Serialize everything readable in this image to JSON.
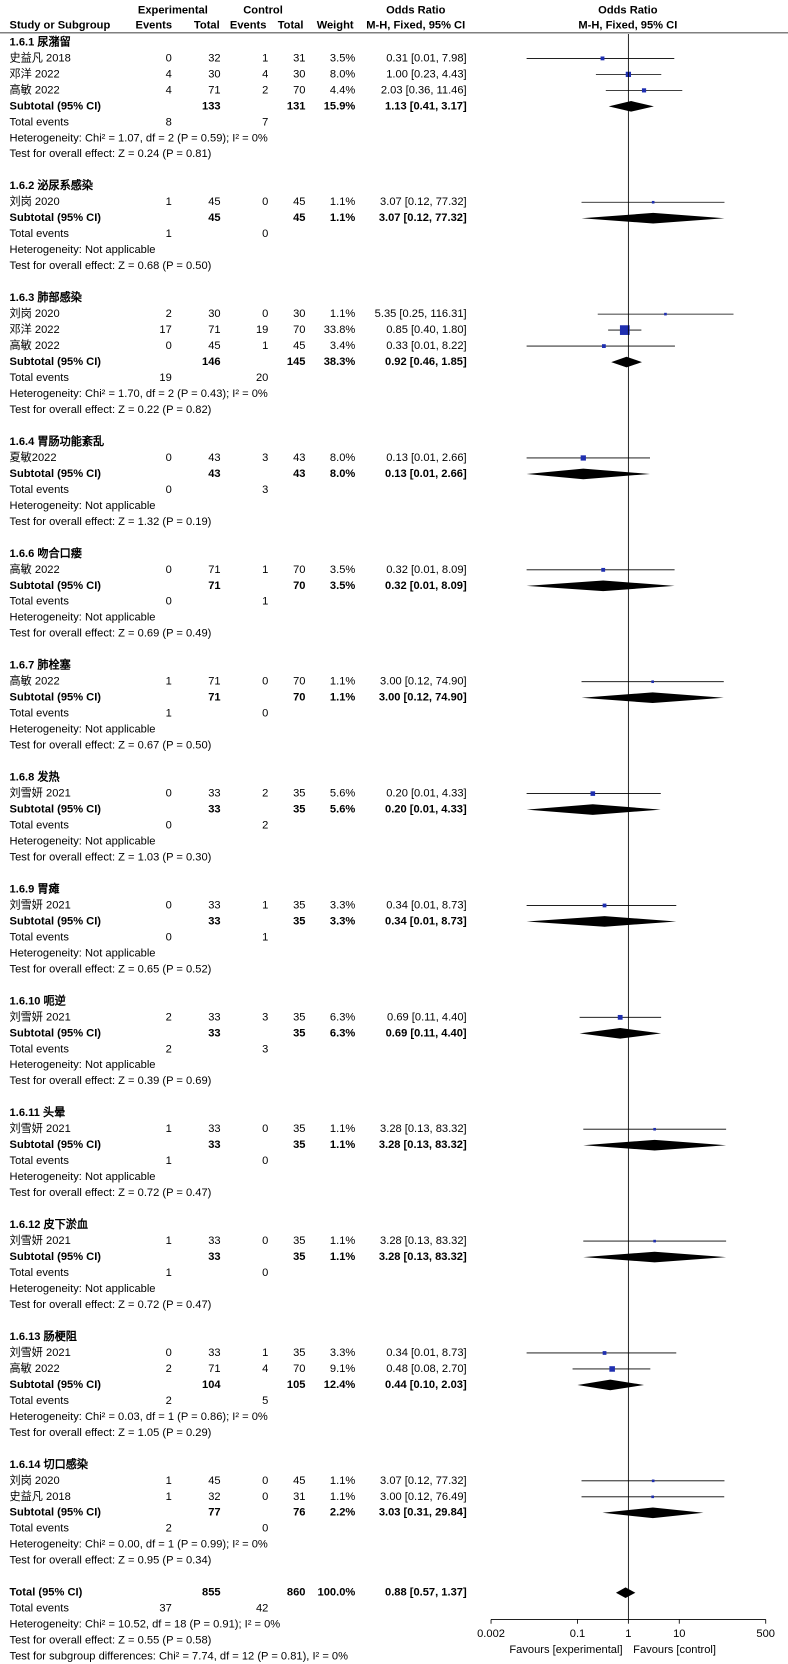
{
  "chart_data": {
    "type": "forest",
    "header": {
      "experimental": "Experimental",
      "control": "Control",
      "columns": [
        "Study or Subgroup",
        "Events",
        "Total",
        "Events",
        "Total",
        "Weight"
      ],
      "or_title": "Odds Ratio",
      "or_method": "M-H, Fixed, 95% CI"
    },
    "labels": {
      "subtotal": "Subtotal (95% CI)",
      "total_events": "Total events"
    },
    "xlim": [
      0.002,
      500
    ],
    "xticks": [
      0.002,
      0.1,
      1,
      10,
      500
    ],
    "log": true,
    "xlabel_left": "Favours [experimental]",
    "xlabel_right": "Favours [control]",
    "marker_color": "#1f2fb0",
    "diamond_color": "#000000",
    "groups": [
      {
        "title": "1.6.1 尿潴留",
        "studies": [
          {
            "name": "史益凡 2018",
            "e_events": 0,
            "e_total": 32,
            "c_events": 1,
            "c_total": 31,
            "weight": 3.5,
            "weight_label": "3.5%",
            "or": 0.31,
            "lo": 0.01,
            "hi": 7.98,
            "ci_label": "0.31 [0.01, 7.98]"
          },
          {
            "name": "邓洋 2022",
            "e_events": 4,
            "e_total": 30,
            "c_events": 4,
            "c_total": 30,
            "weight": 8.0,
            "weight_label": "8.0%",
            "or": 1.0,
            "lo": 0.23,
            "hi": 4.43,
            "ci_label": "1.00 [0.23, 4.43]"
          },
          {
            "name": "高敏 2022",
            "e_events": 4,
            "e_total": 71,
            "c_events": 2,
            "c_total": 70,
            "weight": 4.4,
            "weight_label": "4.4%",
            "or": 2.03,
            "lo": 0.36,
            "hi": 11.46,
            "ci_label": "2.03 [0.36, 11.46]"
          }
        ],
        "subtotal": {
          "e_total": 133,
          "c_total": 131,
          "weight": 15.9,
          "weight_label": "15.9%",
          "or": 1.13,
          "lo": 0.41,
          "hi": 3.17,
          "ci_label": "1.13 [0.41, 3.17]"
        },
        "events": [
          8,
          7
        ],
        "heterogeneity": "Heterogeneity: Chi² = 1.07, df = 2 (P = 0.59); I² = 0%",
        "overall": "Test for overall effect: Z = 0.24 (P = 0.81)"
      },
      {
        "title": "1.6.2 泌尿系感染",
        "studies": [
          {
            "name": "刘岗 2020",
            "e_events": 1,
            "e_total": 45,
            "c_events": 0,
            "c_total": 45,
            "weight": 1.1,
            "weight_label": "1.1%",
            "or": 3.07,
            "lo": 0.12,
            "hi": 77.32,
            "ci_label": "3.07 [0.12, 77.32]"
          }
        ],
        "subtotal": {
          "e_total": 45,
          "c_total": 45,
          "weight": 1.1,
          "weight_label": "1.1%",
          "or": 3.07,
          "lo": 0.12,
          "hi": 77.32,
          "ci_label": "3.07 [0.12, 77.32]"
        },
        "events": [
          1,
          0
        ],
        "heterogeneity": "Heterogeneity: Not applicable",
        "overall": "Test for overall effect: Z = 0.68 (P = 0.50)"
      },
      {
        "title": "1.6.3 肺部感染",
        "studies": [
          {
            "name": "刘岗 2020",
            "e_events": 2,
            "e_total": 30,
            "c_events": 0,
            "c_total": 30,
            "weight": 1.1,
            "weight_label": "1.1%",
            "or": 5.35,
            "lo": 0.25,
            "hi": 116.31,
            "ci_label": "5.35 [0.25, 116.31]"
          },
          {
            "name": "邓洋 2022",
            "e_events": 17,
            "e_total": 71,
            "c_events": 19,
            "c_total": 70,
            "weight": 33.8,
            "weight_label": "33.8%",
            "or": 0.85,
            "lo": 0.4,
            "hi": 1.8,
            "ci_label": "0.85 [0.40, 1.80]"
          },
          {
            "name": "高敏 2022",
            "e_events": 0,
            "e_total": 45,
            "c_events": 1,
            "c_total": 45,
            "weight": 3.4,
            "weight_label": "3.4%",
            "or": 0.33,
            "lo": 0.01,
            "hi": 8.22,
            "ci_label": "0.33 [0.01, 8.22]"
          }
        ],
        "subtotal": {
          "e_total": 146,
          "c_total": 145,
          "weight": 38.3,
          "weight_label": "38.3%",
          "or": 0.92,
          "lo": 0.46,
          "hi": 1.85,
          "ci_label": "0.92 [0.46, 1.85]"
        },
        "events": [
          19,
          20
        ],
        "heterogeneity": "Heterogeneity: Chi² = 1.70, df = 2 (P = 0.43); I² = 0%",
        "overall": "Test for overall effect: Z = 0.22 (P = 0.82)"
      },
      {
        "title": "1.6.4 胃肠功能紊乱",
        "studies": [
          {
            "name": "夏敏2022",
            "e_events": 0,
            "e_total": 43,
            "c_events": 3,
            "c_total": 43,
            "weight": 8.0,
            "weight_label": "8.0%",
            "or": 0.13,
            "lo": 0.01,
            "hi": 2.66,
            "ci_label": "0.13 [0.01, 2.66]"
          }
        ],
        "subtotal": {
          "e_total": 43,
          "c_total": 43,
          "weight": 8.0,
          "weight_label": "8.0%",
          "or": 0.13,
          "lo": 0.01,
          "hi": 2.66,
          "ci_label": "0.13 [0.01, 2.66]"
        },
        "events": [
          0,
          3
        ],
        "heterogeneity": "Heterogeneity: Not applicable",
        "overall": "Test for overall effect: Z = 1.32 (P = 0.19)"
      },
      {
        "title": "1.6.6 吻合口瘘",
        "studies": [
          {
            "name": "高敏 2022",
            "e_events": 0,
            "e_total": 71,
            "c_events": 1,
            "c_total": 70,
            "weight": 3.5,
            "weight_label": "3.5%",
            "or": 0.32,
            "lo": 0.01,
            "hi": 8.09,
            "ci_label": "0.32 [0.01, 8.09]"
          }
        ],
        "subtotal": {
          "e_total": 71,
          "c_total": 70,
          "weight": 3.5,
          "weight_label": "3.5%",
          "or": 0.32,
          "lo": 0.01,
          "hi": 8.09,
          "ci_label": "0.32 [0.01, 8.09]"
        },
        "events": [
          0,
          1
        ],
        "heterogeneity": "Heterogeneity: Not applicable",
        "overall": "Test for overall effect: Z = 0.69 (P = 0.49)"
      },
      {
        "title": "1.6.7 肺栓塞",
        "studies": [
          {
            "name": "高敏 2022",
            "e_events": 1,
            "e_total": 71,
            "c_events": 0,
            "c_total": 70,
            "weight": 1.1,
            "weight_label": "1.1%",
            "or": 3.0,
            "lo": 0.12,
            "hi": 74.9,
            "ci_label": "3.00 [0.12, 74.90]"
          }
        ],
        "subtotal": {
          "e_total": 71,
          "c_total": 70,
          "weight": 1.1,
          "weight_label": "1.1%",
          "or": 3.0,
          "lo": 0.12,
          "hi": 74.9,
          "ci_label": "3.00 [0.12, 74.90]"
        },
        "events": [
          1,
          0
        ],
        "heterogeneity": "Heterogeneity: Not applicable",
        "overall": "Test for overall effect: Z = 0.67 (P = 0.50)"
      },
      {
        "title": "1.6.8 发热",
        "studies": [
          {
            "name": "刘雪妍 2021",
            "e_events": 0,
            "e_total": 33,
            "c_events": 2,
            "c_total": 35,
            "weight": 5.6,
            "weight_label": "5.6%",
            "or": 0.2,
            "lo": 0.01,
            "hi": 4.33,
            "ci_label": "0.20 [0.01, 4.33]"
          }
        ],
        "subtotal": {
          "e_total": 33,
          "c_total": 35,
          "weight": 5.6,
          "weight_label": "5.6%",
          "or": 0.2,
          "lo": 0.01,
          "hi": 4.33,
          "ci_label": "0.20 [0.01, 4.33]"
        },
        "events": [
          0,
          2
        ],
        "heterogeneity": "Heterogeneity: Not applicable",
        "overall": "Test for overall effect: Z = 1.03 (P = 0.30)"
      },
      {
        "title": "1.6.9 胃瘫",
        "studies": [
          {
            "name": "刘雪妍 2021",
            "e_events": 0,
            "e_total": 33,
            "c_events": 1,
            "c_total": 35,
            "weight": 3.3,
            "weight_label": "3.3%",
            "or": 0.34,
            "lo": 0.01,
            "hi": 8.73,
            "ci_label": "0.34 [0.01, 8.73]"
          }
        ],
        "subtotal": {
          "e_total": 33,
          "c_total": 35,
          "weight": 3.3,
          "weight_label": "3.3%",
          "or": 0.34,
          "lo": 0.01,
          "hi": 8.73,
          "ci_label": "0.34 [0.01, 8.73]"
        },
        "events": [
          0,
          1
        ],
        "heterogeneity": "Heterogeneity: Not applicable",
        "overall": "Test for overall effect: Z = 0.65 (P = 0.52)"
      },
      {
        "title": "1.6.10 呃逆",
        "studies": [
          {
            "name": "刘雪妍 2021",
            "e_events": 2,
            "e_total": 33,
            "c_events": 3,
            "c_total": 35,
            "weight": 6.3,
            "weight_label": "6.3%",
            "or": 0.69,
            "lo": 0.11,
            "hi": 4.4,
            "ci_label": "0.69 [0.11, 4.40]"
          }
        ],
        "subtotal": {
          "e_total": 33,
          "c_total": 35,
          "weight": 6.3,
          "weight_label": "6.3%",
          "or": 0.69,
          "lo": 0.11,
          "hi": 4.4,
          "ci_label": "0.69 [0.11, 4.40]"
        },
        "events": [
          2,
          3
        ],
        "heterogeneity": "Heterogeneity: Not applicable",
        "overall": "Test for overall effect: Z = 0.39 (P = 0.69)"
      },
      {
        "title": "1.6.11 头晕",
        "studies": [
          {
            "name": "刘雪妍 2021",
            "e_events": 1,
            "e_total": 33,
            "c_events": 0,
            "c_total": 35,
            "weight": 1.1,
            "weight_label": "1.1%",
            "or": 3.28,
            "lo": 0.13,
            "hi": 83.32,
            "ci_label": "3.28 [0.13, 83.32]"
          }
        ],
        "subtotal": {
          "e_total": 33,
          "c_total": 35,
          "weight": 1.1,
          "weight_label": "1.1%",
          "or": 3.28,
          "lo": 0.13,
          "hi": 83.32,
          "ci_label": "3.28 [0.13, 83.32]"
        },
        "events": [
          1,
          0
        ],
        "heterogeneity": "Heterogeneity: Not applicable",
        "overall": "Test for overall effect: Z = 0.72 (P = 0.47)"
      },
      {
        "title": "1.6.12 皮下淤血",
        "studies": [
          {
            "name": "刘雪妍 2021",
            "e_events": 1,
            "e_total": 33,
            "c_events": 0,
            "c_total": 35,
            "weight": 1.1,
            "weight_label": "1.1%",
            "or": 3.28,
            "lo": 0.13,
            "hi": 83.32,
            "ci_label": "3.28 [0.13, 83.32]"
          }
        ],
        "subtotal": {
          "e_total": 33,
          "c_total": 35,
          "weight": 1.1,
          "weight_label": "1.1%",
          "or": 3.28,
          "lo": 0.13,
          "hi": 83.32,
          "ci_label": "3.28 [0.13, 83.32]"
        },
        "events": [
          1,
          0
        ],
        "heterogeneity": "Heterogeneity: Not applicable",
        "overall": "Test for overall effect: Z = 0.72 (P = 0.47)"
      },
      {
        "title": "1.6.13 肠梗阻",
        "studies": [
          {
            "name": "刘雪妍 2021",
            "e_events": 0,
            "e_total": 33,
            "c_events": 1,
            "c_total": 35,
            "weight": 3.3,
            "weight_label": "3.3%",
            "or": 0.34,
            "lo": 0.01,
            "hi": 8.73,
            "ci_label": "0.34 [0.01, 8.73]"
          },
          {
            "name": "高敏 2022",
            "e_events": 2,
            "e_total": 71,
            "c_events": 4,
            "c_total": 70,
            "weight": 9.1,
            "weight_label": "9.1%",
            "or": 0.48,
            "lo": 0.08,
            "hi": 2.7,
            "ci_label": "0.48 [0.08, 2.70]"
          }
        ],
        "subtotal": {
          "e_total": 104,
          "c_total": 105,
          "weight": 12.4,
          "weight_label": "12.4%",
          "or": 0.44,
          "lo": 0.1,
          "hi": 2.03,
          "ci_label": "0.44 [0.10, 2.03]"
        },
        "events": [
          2,
          5
        ],
        "heterogeneity": "Heterogeneity: Chi² = 0.03, df = 1 (P = 0.86); I² = 0%",
        "overall": "Test for overall effect: Z = 1.05 (P = 0.29)"
      },
      {
        "title": "1.6.14 切口感染",
        "studies": [
          {
            "name": "刘岗 2020",
            "e_events": 1,
            "e_total": 45,
            "c_events": 0,
            "c_total": 45,
            "weight": 1.1,
            "weight_label": "1.1%",
            "or": 3.07,
            "lo": 0.12,
            "hi": 77.32,
            "ci_label": "3.07 [0.12, 77.32]"
          },
          {
            "name": "史益凡 2018",
            "e_events": 1,
            "e_total": 32,
            "c_events": 0,
            "c_total": 31,
            "weight": 1.1,
            "weight_label": "1.1%",
            "or": 3.0,
            "lo": 0.12,
            "hi": 76.49,
            "ci_label": "3.00 [0.12, 76.49]"
          }
        ],
        "subtotal": {
          "e_total": 77,
          "c_total": 76,
          "weight": 2.2,
          "weight_label": "2.2%",
          "or": 3.03,
          "lo": 0.31,
          "hi": 29.84,
          "ci_label": "3.03 [0.31, 29.84]"
        },
        "events": [
          2,
          0
        ],
        "heterogeneity": "Heterogeneity: Chi² = 0.00, df = 1 (P = 0.99); I² = 0%",
        "overall": "Test for overall effect: Z = 0.95 (P = 0.34)"
      }
    ],
    "total": {
      "label": "Total (95% CI)",
      "e_total": 855,
      "c_total": 860,
      "weight": 100.0,
      "weight_label": "100.0%",
      "or": 0.88,
      "lo": 0.57,
      "hi": 1.37,
      "ci_label": "0.88 [0.57, 1.37]",
      "events": [
        37,
        42
      ],
      "heterogeneity": "Heterogeneity: Chi² = 10.52, df = 18 (P = 0.91); I² = 0%",
      "overall": "Test for overall effect: Z = 0.55 (P = 0.58)",
      "subgroup_diff": "Test for subgroup differences: Chi² = 7.74, df = 12 (P = 0.81), I² = 0%"
    }
  }
}
